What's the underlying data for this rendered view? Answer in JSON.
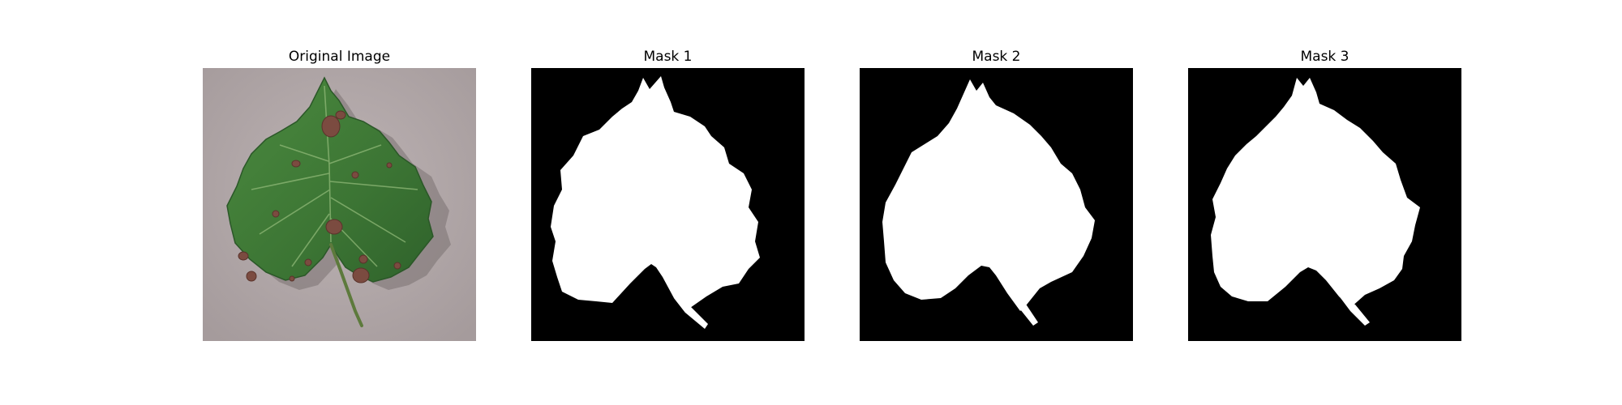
{
  "panels": [
    {
      "title": "Original Image"
    },
    {
      "title": "Mask 1"
    },
    {
      "title": "Mask 2"
    },
    {
      "title": "Mask 3"
    }
  ],
  "colors": {
    "background_surface": "#b1a7a8",
    "leaf_green": "#3f7c37",
    "leaf_dark": "#2a5a28",
    "lesion_brown": "#7b4b40",
    "mask_background": "#000000",
    "mask_foreground": "#ffffff"
  }
}
